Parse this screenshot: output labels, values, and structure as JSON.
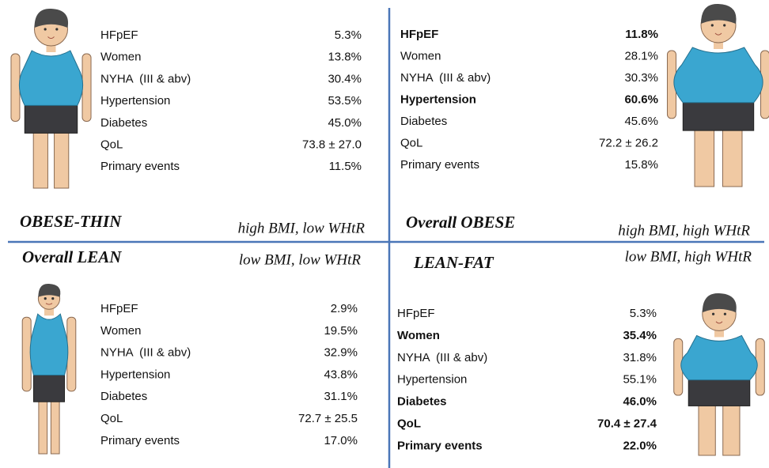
{
  "quadrants": [
    {
      "title": "OBESE-THIN",
      "subtitle": "high BMI, low WHtR",
      "rows": [
        {
          "label": "HFpEF",
          "value": "5.3%"
        },
        {
          "label": "Women",
          "value": "13.8%"
        },
        {
          "label": "NYHA  (III & abv)",
          "value": "30.4%"
        },
        {
          "label": "Hypertension",
          "value": "53.5%"
        },
        {
          "label": "Diabetes",
          "value": "45.0%"
        },
        {
          "label": "QoL",
          "value": "73.8 ± 27.0"
        },
        {
          "label": "Primary events",
          "value": "11.5%"
        }
      ]
    },
    {
      "title": "Overall OBESE",
      "subtitle": "high BMI, high WHtR",
      "rows": [
        {
          "label": "HFpEF",
          "value": "11.8%",
          "bold": true
        },
        {
          "label": "Women",
          "value": "28.1%"
        },
        {
          "label": "NYHA  (III & abv)",
          "value": "30.3%"
        },
        {
          "label": "Hypertension",
          "value": "60.6%",
          "bold": true
        },
        {
          "label": "Diabetes",
          "value": "45.6%"
        },
        {
          "label": "QoL",
          "value": "72.2 ± 26.2"
        },
        {
          "label": "Primary events",
          "value": "15.8%"
        }
      ]
    },
    {
      "title": "Overall LEAN",
      "subtitle": "low BMI, low WHtR",
      "rows": [
        {
          "label": "HFpEF",
          "value": "2.9%"
        },
        {
          "label": "Women",
          "value": "19.5%"
        },
        {
          "label": "NYHA  (III & abv)",
          "value": "32.9%"
        },
        {
          "label": "Hypertension",
          "value": "43.8%"
        },
        {
          "label": "Diabetes",
          "value": "31.1%"
        },
        {
          "label": "QoL",
          "value": "72.7 ± 25.5"
        },
        {
          "label": "Primary events",
          "value": "17.0%"
        }
      ]
    },
    {
      "title": "LEAN-FAT",
      "subtitle": "low BMI, high WHtR",
      "rows": [
        {
          "label": "HFpEF",
          "value": "5.3%"
        },
        {
          "label": "Women",
          "value": "35.4%",
          "bold": true
        },
        {
          "label": "NYHA  (III & abv)",
          "value": "31.8%"
        },
        {
          "label": "Hypertension",
          "value": "55.1%"
        },
        {
          "label": "Diabetes",
          "value": "46.0%",
          "bold": true
        },
        {
          "label": "QoL",
          "value": "70.4 ± 27.4",
          "bold": true
        },
        {
          "label": "Primary events",
          "value": "22.0%",
          "bold": true
        }
      ]
    }
  ]
}
